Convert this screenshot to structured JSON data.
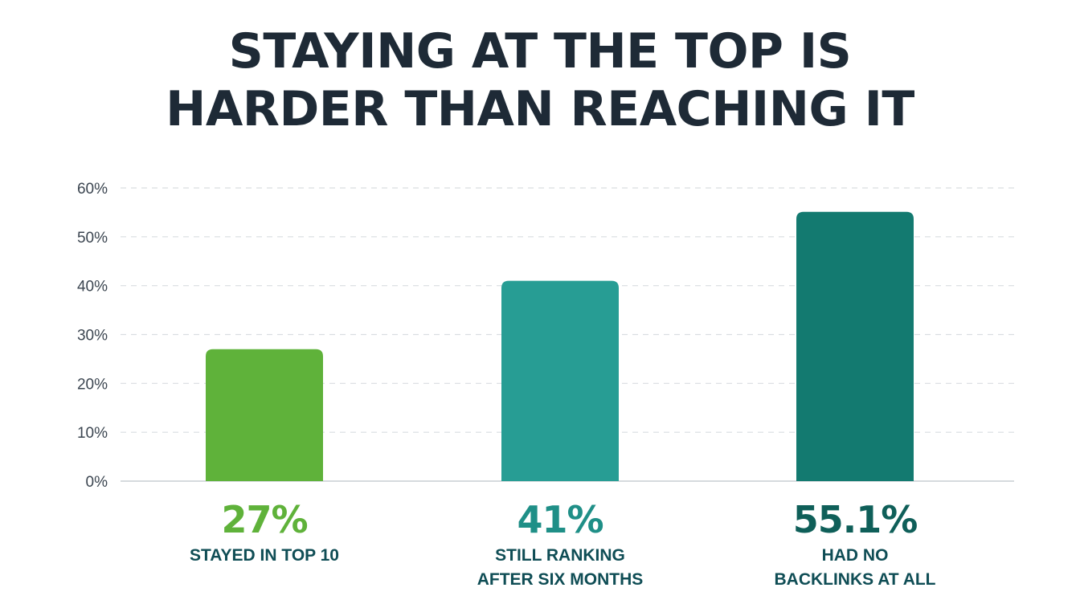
{
  "chart_data": {
    "type": "bar",
    "title": [
      "STAYING AT THE TOP IS",
      "HARDER THAN REACHING IT"
    ],
    "categories": [
      [
        "STAYED IN TOP 10"
      ],
      [
        "STILL RANKING",
        "AFTER SIX MONTHS"
      ],
      [
        "HAD NO",
        "BACKLINKS AT ALL"
      ]
    ],
    "values": [
      27,
      41,
      55.1
    ],
    "value_labels": [
      "27%",
      "41%",
      "55.1%"
    ],
    "bar_colors": [
      "#5fb23a",
      "#279d94",
      "#137a70"
    ],
    "value_label_colors": [
      "#5fb23a",
      "#1f8f87",
      "#0f5f59"
    ],
    "ylim": [
      0,
      60
    ],
    "yticks": [
      0,
      10,
      20,
      30,
      40,
      50,
      60
    ],
    "ytick_labels": [
      "0%",
      "10%",
      "20%",
      "30%",
      "40%",
      "50%",
      "60%"
    ],
    "grid": true,
    "grid_color": "#d9dde1",
    "axis_color": "#c8cdd2",
    "legend": "none"
  }
}
